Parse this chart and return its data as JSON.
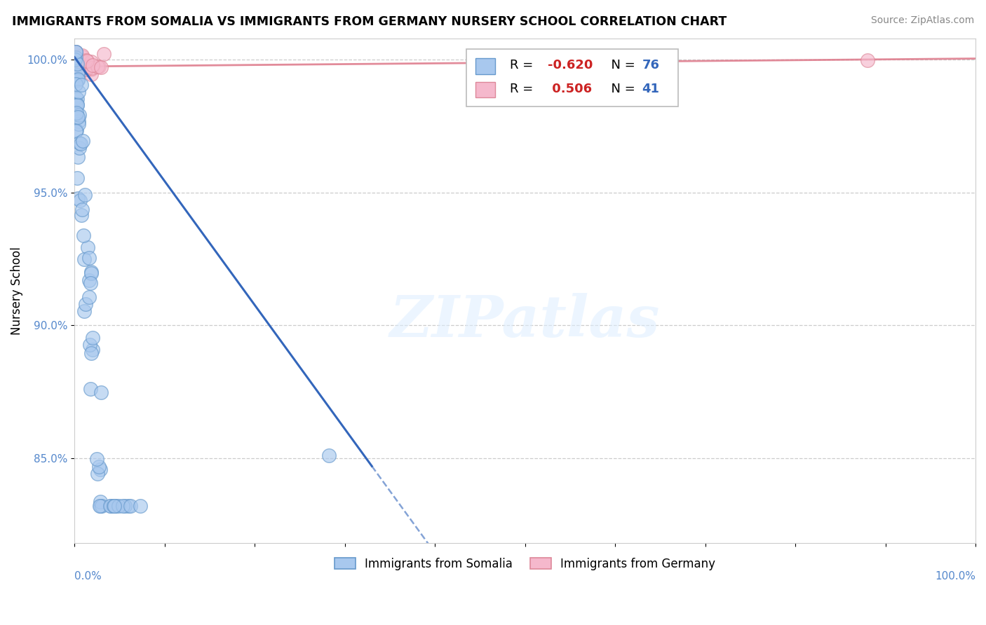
{
  "title": "IMMIGRANTS FROM SOMALIA VS IMMIGRANTS FROM GERMANY NURSERY SCHOOL CORRELATION CHART",
  "source": "Source: ZipAtlas.com",
  "ylabel": "Nursery School",
  "legend_somalia": "Immigrants from Somalia",
  "legend_germany": "Immigrants from Germany",
  "R_somalia": -0.62,
  "N_somalia": 76,
  "R_germany": 0.506,
  "N_germany": 41,
  "somalia_color": "#a8c8ee",
  "somalia_edge": "#6699cc",
  "germany_color": "#f5b8cc",
  "germany_edge": "#dd8899",
  "somalia_line_color": "#3366bb",
  "germany_line_color": "#dd7788",
  "background_color": "#ffffff",
  "grid_color": "#cccccc",
  "xlim": [
    0.0,
    1.0
  ],
  "ylim": [
    0.818,
    1.008
  ],
  "ytick_vals": [
    0.85,
    0.9,
    0.95,
    1.0
  ],
  "ytick_labels": [
    "85.0%",
    "90.0%",
    "95.0%",
    "100.0%"
  ]
}
